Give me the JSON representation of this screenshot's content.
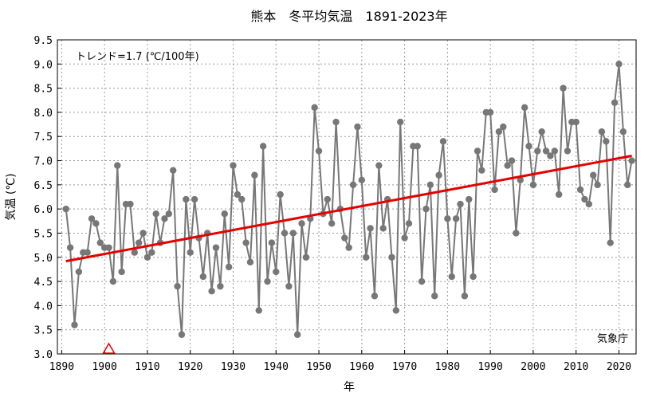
{
  "chart_data": {
    "type": "line",
    "title": "熊本　冬平均気温　1891-2023年",
    "xlabel": "年",
    "ylabel": "気温 (℃)",
    "xlim": [
      1889,
      2024
    ],
    "ylim": [
      3.0,
      9.5
    ],
    "xticks": [
      1890,
      1900,
      1910,
      1920,
      1930,
      1940,
      1950,
      1960,
      1970,
      1980,
      1990,
      2000,
      2010,
      2020
    ],
    "yticks": [
      "3.0",
      "3.5",
      "4.0",
      "4.5",
      "5.0",
      "5.5",
      "6.0",
      "6.5",
      "7.0",
      "7.5",
      "8.0",
      "8.5",
      "9.0",
      "9.5"
    ],
    "grid": true,
    "trend_text": "トレンド=1.7 (℃/100年)",
    "trend": {
      "x": [
        1891,
        2023
      ],
      "y": [
        4.92,
        7.1
      ],
      "color": "#e60000"
    },
    "source": "気象庁",
    "marker_year": 1901,
    "series": [
      {
        "color": "#777777",
        "x": [
          1891,
          1892,
          1893,
          1894,
          1895,
          1896,
          1897,
          1898,
          1899,
          1900,
          1901,
          1902,
          1903,
          1904,
          1905,
          1906,
          1907,
          1908,
          1909,
          1910,
          1911,
          1912,
          1913,
          1914,
          1915,
          1916,
          1917,
          1918,
          1919,
          1920,
          1921,
          1922,
          1923,
          1924,
          1925,
          1926,
          1927,
          1928,
          1929,
          1930,
          1931,
          1932,
          1933,
          1934,
          1935,
          1936,
          1937,
          1938,
          1939,
          1940,
          1941,
          1942,
          1943,
          1944,
          1945,
          1946,
          1947,
          1948,
          1949,
          1950,
          1951,
          1952,
          1953,
          1954,
          1955,
          1956,
          1957,
          1958,
          1959,
          1960,
          1961,
          1962,
          1963,
          1964,
          1965,
          1966,
          1967,
          1968,
          1969,
          1970,
          1971,
          1972,
          1973,
          1974,
          1975,
          1976,
          1977,
          1978,
          1979,
          1980,
          1981,
          1982,
          1983,
          1984,
          1985,
          1986,
          1987,
          1988,
          1989,
          1990,
          1991,
          1992,
          1993,
          1994,
          1995,
          1996,
          1997,
          1998,
          1999,
          2000,
          2001,
          2002,
          2003,
          2004,
          2005,
          2006,
          2007,
          2008,
          2009,
          2010,
          2011,
          2012,
          2013,
          2014,
          2015,
          2016,
          2017,
          2018,
          2019,
          2020,
          2021,
          2022,
          2023
        ],
        "y": [
          6.0,
          5.2,
          3.6,
          4.7,
          5.1,
          5.1,
          5.8,
          5.7,
          5.3,
          5.2,
          5.2,
          4.5,
          6.9,
          4.7,
          6.1,
          6.1,
          5.1,
          5.3,
          5.5,
          5.0,
          5.1,
          5.9,
          5.3,
          5.8,
          5.9,
          6.8,
          4.4,
          3.4,
          6.2,
          5.1,
          6.2,
          5.4,
          4.6,
          5.5,
          4.3,
          5.2,
          4.4,
          5.9,
          4.8,
          6.9,
          6.3,
          6.2,
          5.3,
          4.9,
          6.7,
          3.9,
          7.3,
          4.5,
          5.3,
          4.7,
          6.3,
          5.5,
          4.4,
          5.5,
          3.4,
          5.7,
          5.0,
          5.8,
          8.1,
          7.2,
          5.9,
          6.2,
          5.7,
          7.8,
          6.0,
          5.4,
          5.2,
          6.5,
          7.7,
          6.6,
          5.0,
          5.6,
          4.2,
          6.9,
          5.6,
          6.2,
          5.0,
          3.9,
          7.8,
          5.4,
          5.7,
          7.3,
          7.3,
          4.5,
          6.0,
          6.5,
          4.2,
          6.7,
          7.4,
          5.8,
          4.6,
          5.8,
          6.1,
          4.2,
          6.2,
          4.6,
          7.2,
          6.8,
          8.0,
          8.0,
          6.4,
          7.6,
          7.7,
          6.9,
          7.0,
          5.5,
          6.6,
          8.1,
          7.3,
          6.5,
          7.2,
          7.6,
          7.2,
          7.1,
          7.2,
          6.3,
          8.5,
          7.2,
          7.8,
          7.8,
          6.4,
          6.2,
          6.1,
          6.7,
          6.5,
          7.6,
          7.4,
          5.3,
          8.2,
          9.0,
          7.6,
          6.5,
          7.0
        ]
      }
    ]
  }
}
